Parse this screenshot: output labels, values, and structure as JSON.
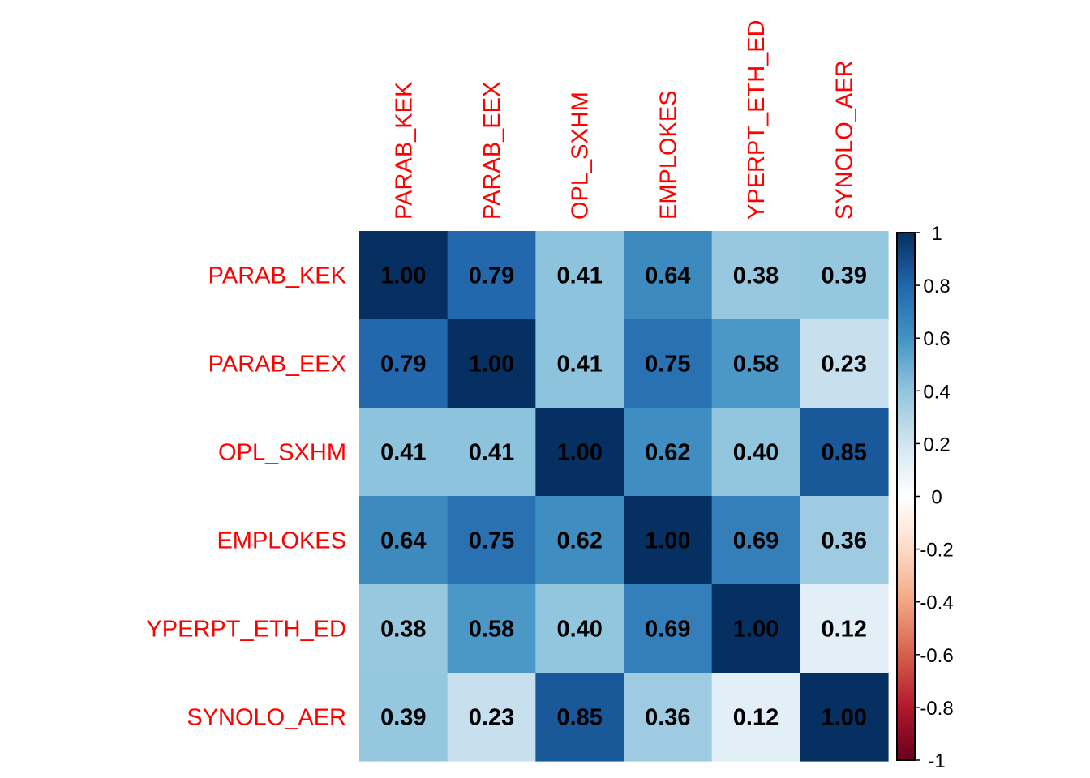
{
  "chart_data": {
    "type": "heatmap",
    "title": "",
    "variables": [
      "PARAB_KEK",
      "PARAB_EEX",
      "OPL_SXHM",
      "EMPLOKES",
      "YPERPT_ETH_ED",
      "SYNOLO_AER"
    ],
    "matrix": [
      [
        1.0,
        0.79,
        0.41,
        0.64,
        0.38,
        0.39
      ],
      [
        0.79,
        1.0,
        0.41,
        0.75,
        0.58,
        0.23
      ],
      [
        0.41,
        0.41,
        1.0,
        0.62,
        0.4,
        0.85
      ],
      [
        0.64,
        0.75,
        0.62,
        1.0,
        0.69,
        0.36
      ],
      [
        0.38,
        0.58,
        0.4,
        0.69,
        1.0,
        0.12
      ],
      [
        0.39,
        0.23,
        0.85,
        0.36,
        0.12,
        1.0
      ]
    ],
    "value_format": "2 decimals",
    "label_color": "#ff0000",
    "value_label_color": "#000000",
    "colorbar": {
      "range": [
        -1,
        1
      ],
      "ticks": [
        "1",
        "0.8",
        "0.6",
        "0.4",
        "0.2",
        "0",
        "-0.2",
        "-0.4",
        "-0.6",
        "-0.8",
        "-1"
      ],
      "tick_values": [
        1,
        0.8,
        0.6,
        0.4,
        0.2,
        0,
        -0.2,
        -0.4,
        -0.6,
        -0.8,
        -1
      ],
      "placement": "right",
      "palette": [
        "#67001f",
        "#b2182b",
        "#d6604d",
        "#f4a582",
        "#fddbc7",
        "#ffffff",
        "#d1e5f0",
        "#92c5de",
        "#4393c3",
        "#2166ac",
        "#053061"
      ]
    },
    "xlabel": "",
    "ylabel": "",
    "legend": "colorbar-right"
  }
}
